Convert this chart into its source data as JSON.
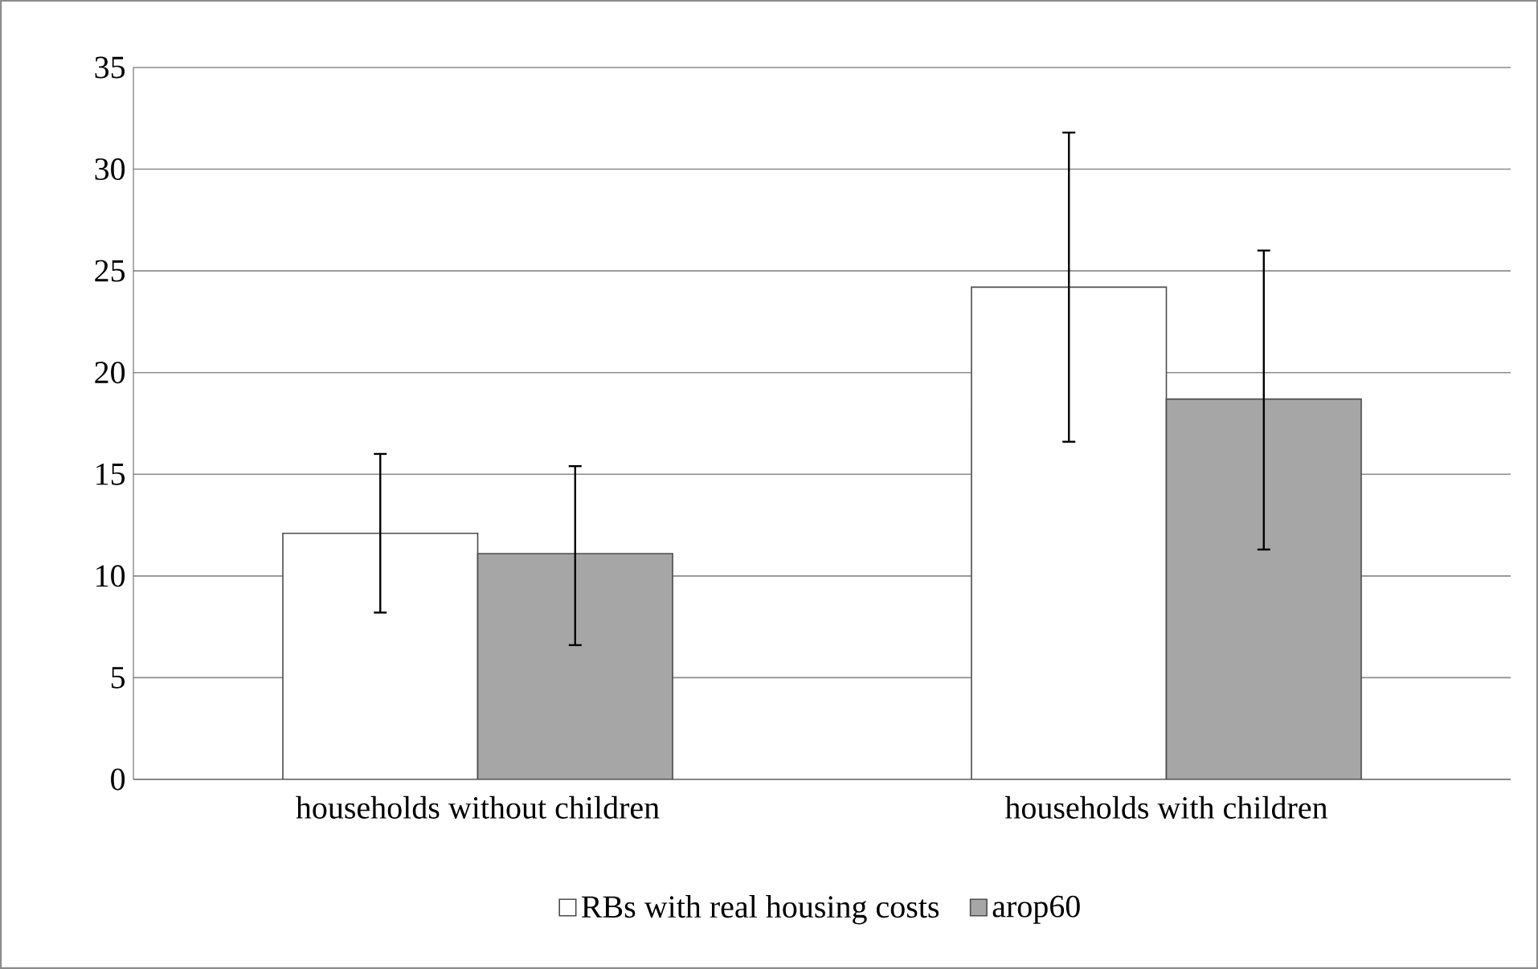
{
  "chart_data": {
    "type": "bar",
    "categories": [
      "households without children",
      "households with children"
    ],
    "series": [
      {
        "name": "RBs with real housing costs",
        "color": "#ffffff",
        "values": [
          12.1,
          24.2
        ],
        "errors": [
          [
            8.2,
            16.0
          ],
          [
            16.6,
            31.8
          ]
        ]
      },
      {
        "name": "arop60",
        "color": "#a6a6a6",
        "values": [
          11.1,
          18.7
        ],
        "errors": [
          [
            6.6,
            15.4
          ],
          [
            11.3,
            26.0
          ]
        ]
      }
    ],
    "ylim": [
      0,
      35
    ],
    "yticks": [
      0,
      5,
      10,
      15,
      20,
      25,
      30,
      35
    ],
    "grid": "y",
    "legend": "bottom"
  }
}
